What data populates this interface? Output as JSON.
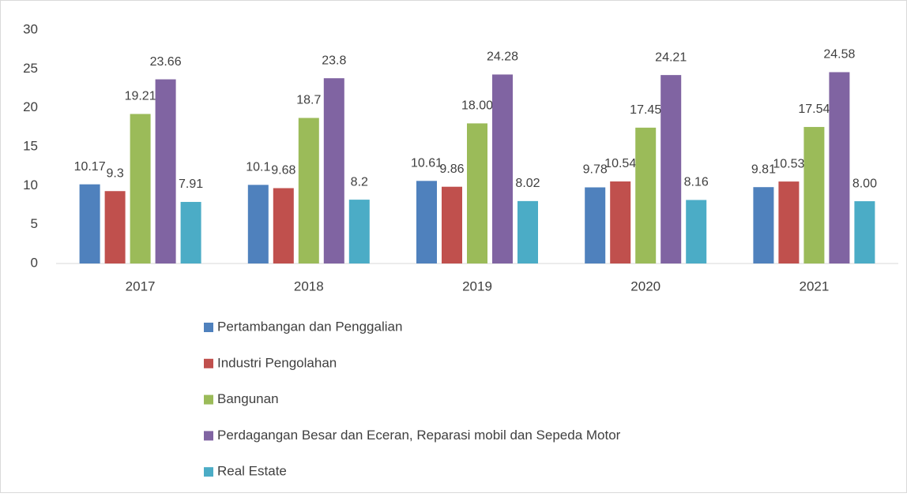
{
  "chart_data": {
    "type": "bar",
    "categories": [
      "2017",
      "2018",
      "2019",
      "2020",
      "2021"
    ],
    "series": [
      {
        "name": "Pertambangan dan Penggalian",
        "color": "#4f81bd",
        "values": [
          10.17,
          10.1,
          10.61,
          9.78,
          9.81
        ],
        "value_labels": [
          "10.17",
          "10.1",
          "10.61",
          "9.78",
          "9.81"
        ]
      },
      {
        "name": "Industri Pengolahan",
        "color": "#c0504d",
        "values": [
          9.3,
          9.68,
          9.86,
          10.54,
          10.53
        ],
        "value_labels": [
          "9.3",
          "9.68",
          "9.86",
          "10.54",
          "10.53"
        ]
      },
      {
        "name": "Bangunan",
        "color": "#9bbb59",
        "values": [
          19.21,
          18.7,
          18,
          17.45,
          17.54
        ],
        "value_labels": [
          "19.21",
          "18.7",
          "18.00",
          "17.45",
          "17.54"
        ]
      },
      {
        "name": "Perdagangan Besar dan Eceran, Reparasi mobil dan Sepeda Motor",
        "color": "#8064a2",
        "values": [
          23.66,
          23.8,
          24.28,
          24.21,
          24.58
        ],
        "value_labels": [
          "23.66",
          "23.8",
          "24.28",
          "24.21",
          "24.58"
        ]
      },
      {
        "name": "Real Estate",
        "color": "#4bacc6",
        "values": [
          7.91,
          8.2,
          8.02,
          8.16,
          8
        ],
        "value_labels": [
          "7.91",
          "8.2",
          "8.02",
          "8.16",
          "8.00"
        ]
      }
    ],
    "ylim": [
      0,
      30
    ],
    "yticks": [
      0,
      5,
      10,
      15,
      20,
      25,
      30
    ],
    "grid": false,
    "legend": "bottom"
  }
}
